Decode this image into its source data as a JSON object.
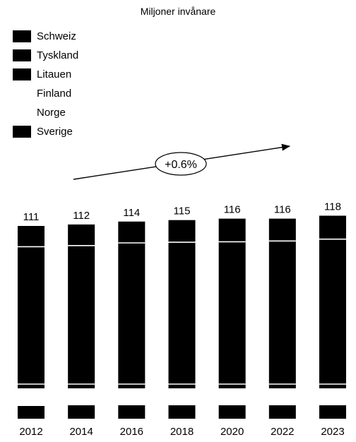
{
  "chart_data": {
    "type": "bar",
    "stacked": true,
    "unit_label": "Miljoner invånare",
    "categories": [
      "2012",
      "2014",
      "2016",
      "2018",
      "2020",
      "2022",
      "2023"
    ],
    "totals": [
      111,
      112,
      114,
      115,
      116,
      116,
      118
    ],
    "series": [
      {
        "name": "Sverige",
        "color": "#000000",
        "values": [
          9.5,
          9.7,
          9.9,
          10.1,
          10.3,
          10.5,
          10.6
        ]
      },
      {
        "name": "Norge",
        "color": "#ffffff",
        "values": [
          5.0,
          5.1,
          5.2,
          5.3,
          5.4,
          5.4,
          5.5
        ]
      },
      {
        "name": "Finland",
        "color": "#ffffff",
        "values": [
          5.4,
          5.5,
          5.5,
          5.5,
          5.5,
          5.5,
          5.6
        ]
      },
      {
        "name": "Litauen",
        "color": "#000000",
        "values": [
          3.0,
          2.9,
          2.9,
          2.8,
          2.8,
          2.8,
          2.9
        ]
      },
      {
        "name": "Tyskland",
        "color": "#000000",
        "values": [
          80.3,
          80.8,
          82.4,
          82.9,
          83.2,
          83.3,
          84.5
        ]
      },
      {
        "name": "Schweiz",
        "color": "#000000",
        "values": [
          7.9,
          8.0,
          8.1,
          8.4,
          8.8,
          8.5,
          8.9
        ]
      }
    ],
    "annotation": {
      "text": "+0.6%"
    },
    "axis_break": true,
    "grid": false,
    "legend_position": "top-left"
  },
  "legend": [
    {
      "name": "Schweiz",
      "color": "#000000"
    },
    {
      "name": "Tyskland",
      "color": "#000000"
    },
    {
      "name": "Litauen",
      "color": "#000000"
    },
    {
      "name": "Finland",
      "color": "#ffffff"
    },
    {
      "name": "Norge",
      "color": "#ffffff"
    },
    {
      "name": "Sverige",
      "color": "#000000"
    }
  ]
}
